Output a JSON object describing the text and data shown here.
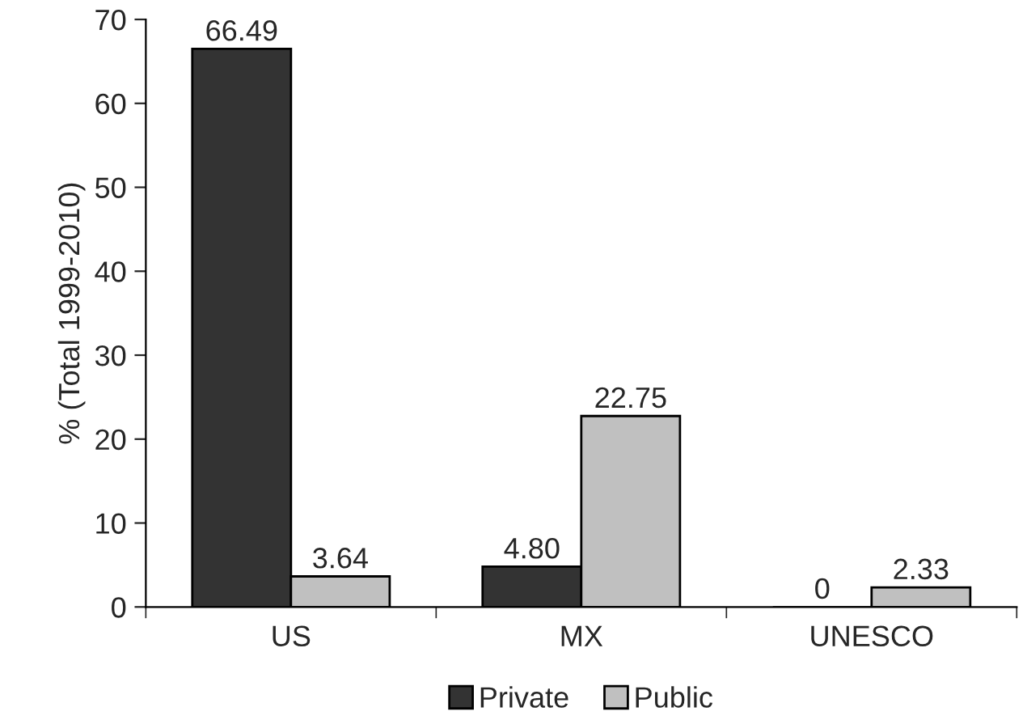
{
  "chart_data": {
    "type": "bar",
    "ylabel": "% (Total 1999-2010)",
    "categories": [
      "US",
      "MX",
      "UNESCO"
    ],
    "series": [
      {
        "name": "Private",
        "color": "#333333",
        "values": [
          66.49,
          4.8,
          0
        ],
        "value_labels": [
          "66.49",
          "4.80",
          "0"
        ]
      },
      {
        "name": "Public",
        "color": "#c0c0c0",
        "values": [
          3.64,
          22.75,
          2.33
        ],
        "value_labels": [
          "3.64",
          "22.75",
          "2.33"
        ]
      }
    ],
    "ylim": [
      0,
      70
    ],
    "yticks": [
      0,
      10,
      20,
      30,
      40,
      50,
      60,
      70
    ],
    "grid": false,
    "legend": "bottom"
  }
}
